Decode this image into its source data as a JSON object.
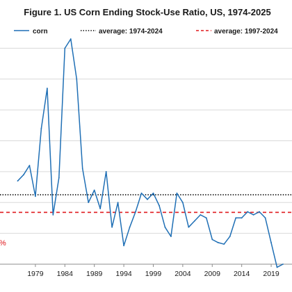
{
  "title": "Figure 1.  US Corn Ending Stock-Use Ratio, US, 1974-2025",
  "legend": [
    {
      "label": "corn",
      "color": "#1f6fb5",
      "style": "solid"
    },
    {
      "label": "average: 1974-2024",
      "color": "#000000",
      "style": "dotted"
    },
    {
      "label": "average: 1997-2024",
      "color": "#e0191d",
      "style": "dashed"
    }
  ],
  "edge_labels": {
    "left_percent": "%"
  },
  "chart_data": {
    "type": "line",
    "title": "Figure 1.  US Corn Ending Stock-Use Ratio, US, 1974-2025",
    "xlabel": "",
    "ylabel": "",
    "x_tick_labels": [
      "1979",
      "1984",
      "1989",
      "1994",
      "1999",
      "2004",
      "2009",
      "2014",
      "2019"
    ],
    "x_ticks": [
      1979,
      1984,
      1989,
      1994,
      1999,
      2004,
      2009,
      2014,
      2019
    ],
    "grid": true,
    "y_gridlines": [
      0.1,
      0.2,
      0.3,
      0.4,
      0.5,
      0.6,
      0.7
    ],
    "xlim": [
      1975,
      2021
    ],
    "ylim": [
      0.0,
      0.8
    ],
    "series": [
      {
        "name": "corn",
        "color": "#1f6fb5",
        "x": [
          1976,
          1977,
          1978,
          1979,
          1980,
          1981,
          1982,
          1983,
          1984,
          1985,
          1986,
          1987,
          1988,
          1989,
          1990,
          1991,
          1992,
          1993,
          1994,
          1995,
          1996,
          1997,
          1998,
          1999,
          2000,
          2001,
          2002,
          2003,
          2004,
          2005,
          2006,
          2007,
          2008,
          2009,
          2010,
          2011,
          2012,
          2013,
          2014,
          2015,
          2016,
          2017,
          2018,
          2019,
          2020,
          2021
        ],
        "values": [
          0.27,
          0.29,
          0.32,
          0.22,
          0.44,
          0.57,
          0.16,
          0.28,
          0.7,
          0.73,
          0.6,
          0.31,
          0.2,
          0.24,
          0.18,
          0.3,
          0.12,
          0.2,
          0.06,
          0.12,
          0.17,
          0.23,
          0.21,
          0.23,
          0.19,
          0.12,
          0.09,
          0.23,
          0.2,
          0.12,
          0.14,
          0.16,
          0.15,
          0.08,
          0.07,
          0.065,
          0.09,
          0.15,
          0.15,
          0.17,
          0.16,
          0.17,
          0.15,
          0.07,
          -0.01,
          0.0
        ]
      },
      {
        "name": "average: 1974-2024",
        "color": "#000000",
        "style": "dotted",
        "value": 0.225
      },
      {
        "name": "average: 1997-2024",
        "color": "#e0191d",
        "style": "dashed",
        "value": 0.168
      }
    ]
  }
}
